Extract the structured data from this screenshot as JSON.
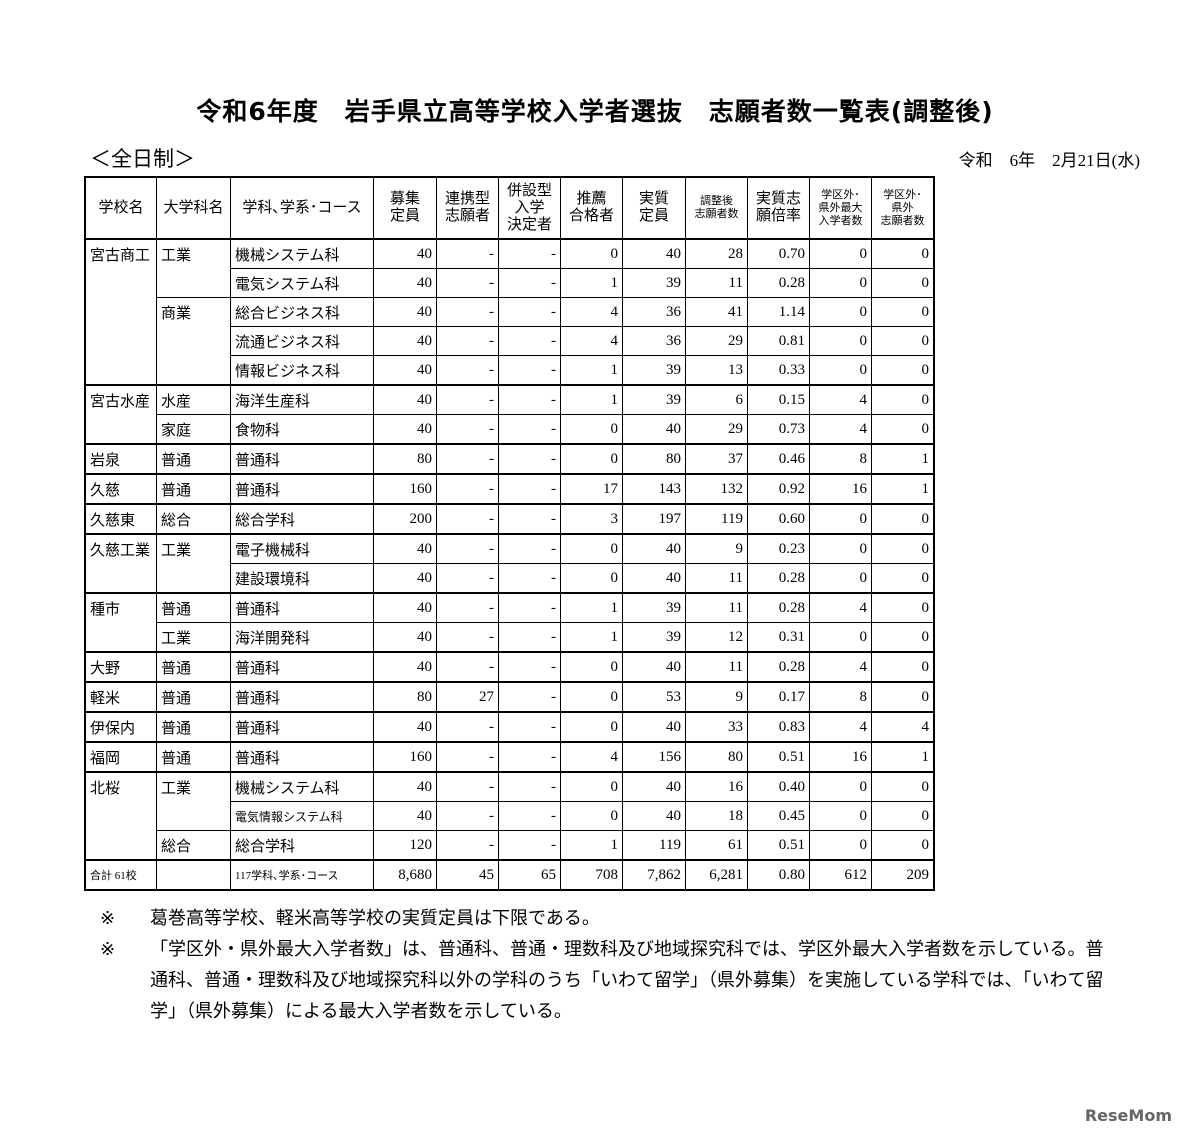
{
  "title": "令和6年度　岩手県立高等学校入学者選抜　志願者数一覧表(調整後)",
  "subtitle": "＜全日制＞",
  "date": "令和　6年　2月21日(水)",
  "headers": [
    "学校名",
    "大学科名",
    "学科､学系･コース",
    "募集\n定員",
    "連携型\n志願者",
    "併設型\n入学\n決定者",
    "推薦\n合格者",
    "実質\n定員",
    "調整後\n志願者数",
    "実質志\n願倍率",
    "学区外･\n県外最大\n入学者数",
    "学区外･\n県外\n志願者数"
  ],
  "rows": [
    [
      "宮古商工",
      "工業",
      "機械システム科",
      "40",
      "-",
      "-",
      "0",
      "40",
      "28",
      "0.70",
      "0",
      "0"
    ],
    [
      "",
      "",
      "電気システム科",
      "40",
      "-",
      "-",
      "1",
      "39",
      "11",
      "0.28",
      "0",
      "0"
    ],
    [
      "",
      "商業",
      "総合ビジネス科",
      "40",
      "-",
      "-",
      "4",
      "36",
      "41",
      "1.14",
      "0",
      "0"
    ],
    [
      "",
      "",
      "流通ビジネス科",
      "40",
      "-",
      "-",
      "4",
      "36",
      "29",
      "0.81",
      "0",
      "0"
    ],
    [
      "",
      "",
      "情報ビジネス科",
      "40",
      "-",
      "-",
      "1",
      "39",
      "13",
      "0.33",
      "0",
      "0"
    ],
    [
      "宮古水産",
      "水産",
      "海洋生産科",
      "40",
      "-",
      "-",
      "1",
      "39",
      "6",
      "0.15",
      "4",
      "0"
    ],
    [
      "",
      "家庭",
      "食物科",
      "40",
      "-",
      "-",
      "0",
      "40",
      "29",
      "0.73",
      "4",
      "0"
    ],
    [
      "岩泉",
      "普通",
      "普通科",
      "80",
      "-",
      "-",
      "0",
      "80",
      "37",
      "0.46",
      "8",
      "1"
    ],
    [
      "久慈",
      "普通",
      "普通科",
      "160",
      "-",
      "-",
      "17",
      "143",
      "132",
      "0.92",
      "16",
      "1"
    ],
    [
      "久慈東",
      "総合",
      "総合学科",
      "200",
      "-",
      "-",
      "3",
      "197",
      "119",
      "0.60",
      "0",
      "0"
    ],
    [
      "久慈工業",
      "工業",
      "電子機械科",
      "40",
      "-",
      "-",
      "0",
      "40",
      "9",
      "0.23",
      "0",
      "0"
    ],
    [
      "",
      "",
      "建設環境科",
      "40",
      "-",
      "-",
      "0",
      "40",
      "11",
      "0.28",
      "0",
      "0"
    ],
    [
      "種市",
      "普通",
      "普通科",
      "40",
      "-",
      "-",
      "1",
      "39",
      "11",
      "0.28",
      "4",
      "0"
    ],
    [
      "",
      "工業",
      "海洋開発科",
      "40",
      "-",
      "-",
      "1",
      "39",
      "12",
      "0.31",
      "0",
      "0"
    ],
    [
      "大野",
      "普通",
      "普通科",
      "40",
      "-",
      "-",
      "0",
      "40",
      "11",
      "0.28",
      "4",
      "0"
    ],
    [
      "軽米",
      "普通",
      "普通科",
      "80",
      "27",
      "-",
      "0",
      "53",
      "9",
      "0.17",
      "8",
      "0"
    ],
    [
      "伊保内",
      "普通",
      "普通科",
      "40",
      "-",
      "-",
      "0",
      "40",
      "33",
      "0.83",
      "4",
      "4"
    ],
    [
      "福岡",
      "普通",
      "普通科",
      "160",
      "-",
      "-",
      "4",
      "156",
      "80",
      "0.51",
      "16",
      "1"
    ],
    [
      "北桜",
      "工業",
      "機械システム科",
      "40",
      "-",
      "-",
      "0",
      "40",
      "16",
      "0.40",
      "0",
      "0"
    ],
    [
      "",
      "",
      "電気情報システム科",
      "40",
      "-",
      "-",
      "0",
      "40",
      "18",
      "0.45",
      "0",
      "0"
    ],
    [
      "",
      "総合",
      "総合学科",
      "120",
      "-",
      "-",
      "1",
      "119",
      "61",
      "0.51",
      "0",
      "0"
    ]
  ],
  "total": [
    "合計 61校",
    "",
    "117学科､学系･コース",
    "8,680",
    "45",
    "65",
    "708",
    "7,862",
    "6,281",
    "0.80",
    "612",
    "209"
  ],
  "notes": [
    {
      "mark": "※",
      "text": "葛巻高等学校、軽米高等学校の実質定員は下限である。"
    },
    {
      "mark": "※",
      "text": "「学区外・県外最大入学者数」は、普通科、普通・理数科及び地域探究科では、学区外最大入学者数を示している。普通科、普通・理数科及び地域探究科以外の学科のうち「いわて留学」（県外募集）を実施している学科では、「いわて留学」（県外募集）による最大入学者数を示している。"
    }
  ],
  "watermark": "ReseMom"
}
